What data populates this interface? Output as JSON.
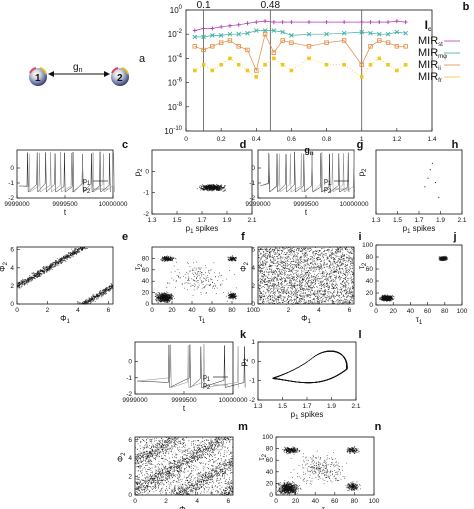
{
  "panel_letters": {
    "a": "a",
    "b": "b",
    "c": "c",
    "d": "d",
    "e": "e",
    "f": "f",
    "g": "g",
    "h": "h",
    "i": "i",
    "j": "j",
    "k": "k",
    "l": "l",
    "m": "m",
    "n": "n"
  },
  "diagram": {
    "node1": "1",
    "node2": "2",
    "coupling": "g",
    "coupling_sub": "n"
  },
  "chart_data": [
    {
      "id": "b",
      "type": "line",
      "yscale": "log",
      "xlabel": "g",
      "xlabel_sub": "n",
      "ylabel": "I",
      "ylabel_sub": "c",
      "xlim": [
        0,
        1.4
      ],
      "ylim": [
        1e-10,
        1
      ],
      "xticks": [
        "0",
        "0.2",
        "0.4",
        "0.6",
        "0.8",
        "1",
        "1.2",
        "1.4"
      ],
      "yticks": [
        "10^0",
        "10^-2",
        "10^-4",
        "10^-6",
        "10^-8",
        "10^-10"
      ],
      "markers": [
        {
          "x": 0.1,
          "label": "0.1"
        },
        {
          "x": 0.48,
          "label": "0.48"
        },
        {
          "x": 1,
          "label": ""
        }
      ],
      "series": [
        {
          "name": "MIR",
          "sub": "st",
          "color": "#b23ab5",
          "x": [
            0.05,
            0.1,
            0.15,
            0.2,
            0.25,
            0.3,
            0.35,
            0.4,
            0.45,
            0.5,
            0.55,
            0.6,
            0.7,
            0.8,
            0.9,
            1.0,
            1.05,
            1.1,
            1.15,
            1.2,
            1.25
          ],
          "y": [
            0.02,
            0.03,
            0.03,
            0.04,
            0.05,
            0.06,
            0.08,
            0.1,
            0.12,
            0.1,
            0.1,
            0.1,
            0.1,
            0.1,
            0.1,
            0.1,
            0.1,
            0.1,
            0.1,
            0.12,
            0.1
          ]
        },
        {
          "name": "MIR",
          "sub": "mφ",
          "color": "#3bb0a0",
          "x": [
            0.05,
            0.1,
            0.15,
            0.2,
            0.25,
            0.3,
            0.35,
            0.4,
            0.45,
            0.5,
            0.55,
            0.6,
            0.7,
            0.8,
            0.9,
            1.0,
            1.05,
            1.1,
            1.15,
            1.2,
            1.25
          ],
          "y": [
            0.006,
            0.006,
            0.008,
            0.008,
            0.01,
            0.01,
            0.012,
            0.02,
            0.02,
            0.02,
            0.015,
            0.008,
            0.01,
            0.01,
            0.012,
            0.015,
            0.012,
            0.01,
            0.01,
            0.015,
            0.012
          ]
        },
        {
          "name": "MIR",
          "sub": "ii",
          "color": "#e08a3c",
          "x": [
            0.05,
            0.1,
            0.15,
            0.2,
            0.25,
            0.3,
            0.35,
            0.4,
            0.45,
            0.5,
            0.55,
            0.6,
            0.7,
            0.8,
            0.9,
            1.0,
            1.05,
            1.1,
            1.15,
            1.2,
            1.25
          ],
          "y": [
            0.001,
            0.0005,
            0.001,
            0.002,
            0.003,
            0.001,
            0.0005,
            1e-05,
            0.01,
            0.0003,
            0.003,
            0.002,
            0.001,
            0.002,
            0.003,
            3e-05,
            0.001,
            0.003,
            0.002,
            0.001,
            0.001
          ]
        },
        {
          "name": "MIR",
          "sub": "fr",
          "color": "#f2c520",
          "x": [
            0.05,
            0.1,
            0.15,
            0.2,
            0.25,
            0.3,
            0.35,
            0.4,
            0.45,
            0.5,
            0.55,
            0.6,
            0.7,
            0.8,
            0.9,
            1.0,
            1.05,
            1.1,
            1.15,
            1.2,
            1.25
          ],
          "y": [
            1e-05,
            3e-05,
            1e-05,
            3e-05,
            0.0001,
            3e-05,
            1e-05,
            3e-06,
            3e-05,
            0.0001,
            3e-05,
            1e-05,
            0.0001,
            3e-05,
            3e-05,
            3e-06,
            3e-05,
            0.0001,
            3e-05,
            1e-05,
            3e-05
          ]
        }
      ]
    },
    {
      "id": "c",
      "type": "line",
      "xlabel": "t",
      "xticks": [
        "9999000",
        "9999500",
        "10000000"
      ],
      "yticks": [
        "0",
        "-1",
        "-2"
      ],
      "ylim": [
        -2,
        1.2
      ],
      "legend": [
        {
          "label": "p",
          "sub": "1"
        },
        {
          "label": "p",
          "sub": "2"
        }
      ]
    },
    {
      "id": "d",
      "type": "scatter",
      "xlabel": "p",
      "xlabel_sub": "1",
      "xlabel_rest": " spikes",
      "ylabel": "p",
      "ylabel_sub": "2",
      "xticks": [
        "1.3",
        "1.5",
        "1.7",
        "1.9",
        "2.1"
      ],
      "xlim": [
        1.3,
        2.1
      ],
      "ylim": [
        -2,
        1
      ],
      "yticks": [
        "0",
        "-1",
        "-2"
      ]
    },
    {
      "id": "e",
      "type": "scatter",
      "xlabel": "Φ",
      "xlabel_sub": "1",
      "ylabel": "Φ",
      "ylabel_sub": "2",
      "xticks": [
        "0",
        "2",
        "4",
        "6"
      ],
      "yticks": [
        "6",
        "4",
        "2",
        "0"
      ],
      "xlim": [
        0,
        6.3
      ],
      "ylim": [
        0,
        6.3
      ]
    },
    {
      "id": "f",
      "type": "scatter",
      "xlabel": "τ",
      "xlabel_sub": "1",
      "ylabel": "τ",
      "ylabel_sub": "2",
      "xticks": [
        "0",
        "20",
        "40",
        "60",
        "80",
        "100"
      ],
      "yticks": [
        "80",
        "60",
        "40",
        "20",
        "0"
      ],
      "xlim": [
        0,
        100
      ],
      "ylim": [
        0,
        100
      ]
    },
    {
      "id": "g",
      "type": "line",
      "xlabel": "t",
      "xticks": [
        "9999000",
        "9999500",
        "10000000"
      ],
      "yticks": [
        "0",
        "-1",
        "-2"
      ],
      "ylim": [
        -2,
        1.2
      ],
      "legend": [
        {
          "label": "p",
          "sub": "1"
        },
        {
          "label": "p",
          "sub": "2"
        }
      ]
    },
    {
      "id": "h",
      "type": "scatter",
      "xlabel": "p",
      "xlabel_sub": "1",
      "xlabel_rest": " spikes",
      "ylabel": "p",
      "ylabel_sub": "2",
      "xticks": [
        "1.3",
        "1.5",
        "1.7",
        "1.9",
        "2.1"
      ],
      "xlim": [
        1.3,
        2.1
      ],
      "ylim": [
        -2,
        1
      ],
      "yticks": [],
      "points": [
        [
          1.82,
          0.4
        ],
        [
          1.8,
          0.1
        ],
        [
          1.78,
          -0.3
        ],
        [
          1.85,
          -0.5
        ],
        [
          1.75,
          -0.7
        ],
        [
          1.88,
          -1.2
        ]
      ]
    },
    {
      "id": "i",
      "type": "scatter",
      "xlabel": "Φ",
      "xlabel_sub": "1",
      "ylabel": "Φ",
      "ylabel_sub": "2",
      "xticks": [
        "0",
        "2",
        "4",
        "6"
      ],
      "yticks": [
        "6",
        "4",
        "2",
        "0"
      ],
      "xlim": [
        0,
        6.3
      ],
      "ylim": [
        0,
        6.3
      ]
    },
    {
      "id": "j",
      "type": "scatter",
      "xlabel": "τ",
      "xlabel_sub": "1",
      "ylabel": "τ",
      "ylabel_sub": "2",
      "xticks": [
        "0",
        "20",
        "40",
        "60",
        "80",
        "100"
      ],
      "yticks": [
        "100",
        "80",
        "60",
        "40",
        "20",
        "0"
      ],
      "xlim": [
        0,
        100
      ],
      "ylim": [
        0,
        100
      ]
    },
    {
      "id": "k",
      "type": "line",
      "xlabel": "t",
      "xticks": [
        "9999000",
        "9999500",
        "10000000"
      ],
      "yticks": [
        "0",
        "-1",
        "-2"
      ],
      "ylim": [
        -2,
        1.2
      ],
      "legend": [
        {
          "label": "p",
          "sub": "1"
        },
        {
          "label": "p",
          "sub": "2"
        }
      ]
    },
    {
      "id": "l",
      "type": "scatter",
      "xlabel": "p",
      "xlabel_sub": "1",
      "xlabel_rest": " spikes",
      "ylabel": "p",
      "ylabel_sub": "2",
      "xticks": [
        "1.3",
        "1.5",
        "1.7",
        "1.9",
        "2.1"
      ],
      "xlim": [
        1.3,
        2.1
      ],
      "ylim": [
        -2,
        1
      ],
      "yticks": [
        "1",
        "0",
        "-1",
        "-2"
      ]
    },
    {
      "id": "m",
      "type": "scatter",
      "xlabel": "Φ",
      "xlabel_sub": "1",
      "ylabel": "Φ",
      "ylabel_sub": "2",
      "xticks": [
        "0",
        "2",
        "4",
        "6"
      ],
      "yticks": [
        "6",
        "4",
        "2",
        "0"
      ],
      "xlim": [
        0,
        6.3
      ],
      "ylim": [
        0,
        6.3
      ]
    },
    {
      "id": "n",
      "type": "scatter",
      "xlabel": "τ",
      "xlabel_sub": "1",
      "ylabel": "τ",
      "ylabel_sub": "2",
      "xticks": [
        "0",
        "20",
        "40",
        "60",
        "80",
        "100"
      ],
      "yticks": [
        "100",
        "80",
        "60",
        "40",
        "20",
        "0"
      ],
      "xlim": [
        0,
        100
      ],
      "ylim": [
        0,
        100
      ]
    }
  ]
}
